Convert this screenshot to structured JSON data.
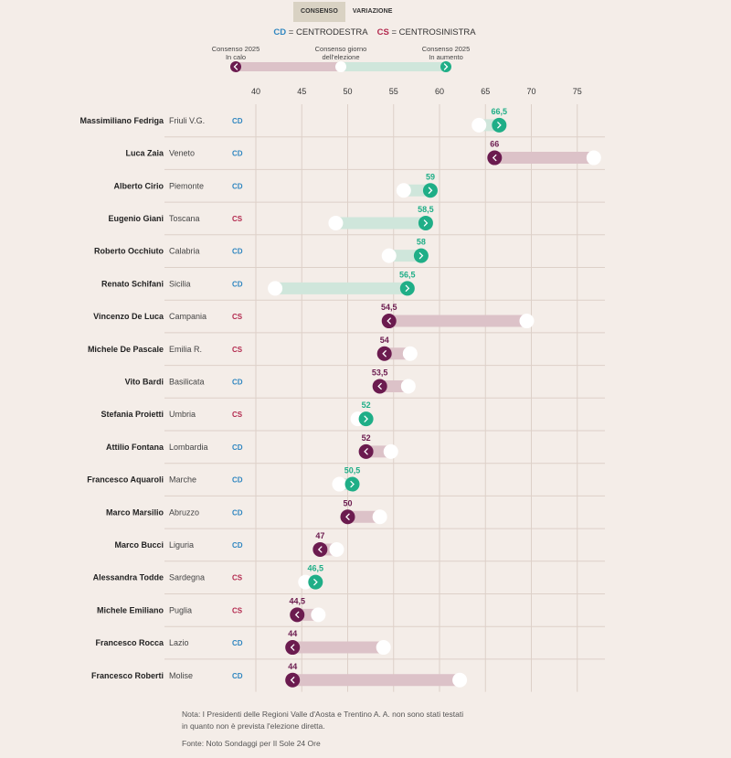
{
  "tabs": [
    {
      "label": "CONSENSO",
      "active": true
    },
    {
      "label": "VARIAZIONE",
      "active": false
    }
  ],
  "legend": {
    "cd_code": "CD",
    "cd_text": "= CENTRODESTRA",
    "cs_code": "CS",
    "cs_text": "= CENTROSINISTRA"
  },
  "key": {
    "left": "Consenso 2025\nIn calo",
    "left_l1": "Consenso 2025",
    "left_l2": "In calo",
    "mid_l1": "Consenso giorno",
    "mid_l2": "dell'elezione",
    "right_l1": "Consenso 2025",
    "right_l2": "In aumento"
  },
  "colors": {
    "background": "#f4ede8",
    "increase": "#1fae87",
    "increase_bar": "#cfe6db",
    "decrease": "#6b1b4f",
    "decrease_bar": "#dcc2c8",
    "cd": "#2f86c0",
    "cs": "#b3294e",
    "grid": "#ddd0c8"
  },
  "chart_data": {
    "type": "dumbbell",
    "title": "",
    "xlabel": "",
    "xlim": [
      40,
      75
    ],
    "xticks": [
      40,
      45,
      50,
      55,
      60,
      65,
      70,
      75
    ],
    "series_names": [
      "Consenso giorno dell'elezione",
      "Consenso 2025"
    ],
    "rows": [
      {
        "name": "Massimiliano Fedriga",
        "region": "Friuli V.G.",
        "coalition": "CD",
        "election": 64.3,
        "consensus_2025": 66.5,
        "label": "66,5"
      },
      {
        "name": "Luca Zaia",
        "region": "Veneto",
        "coalition": "CD",
        "election": 76.8,
        "consensus_2025": 66,
        "label": "66"
      },
      {
        "name": "Alberto Cirio",
        "region": "Piemonte",
        "coalition": "CD",
        "election": 56.1,
        "consensus_2025": 59,
        "label": "59"
      },
      {
        "name": "Eugenio Giani",
        "region": "Toscana",
        "coalition": "CS",
        "election": 48.7,
        "consensus_2025": 58.5,
        "label": "58,5"
      },
      {
        "name": "Roberto Occhiuto",
        "region": "Calabria",
        "coalition": "CD",
        "election": 54.5,
        "consensus_2025": 58,
        "label": "58"
      },
      {
        "name": "Renato Schifani",
        "region": "Sicilia",
        "coalition": "CD",
        "election": 42.1,
        "consensus_2025": 56.5,
        "label": "56,5"
      },
      {
        "name": "Vincenzo De Luca",
        "region": "Campania",
        "coalition": "CS",
        "election": 69.5,
        "consensus_2025": 54.5,
        "label": "54,5"
      },
      {
        "name": "Michele De Pascale",
        "region": "Emilia R.",
        "coalition": "CS",
        "election": 56.8,
        "consensus_2025": 54,
        "label": "54"
      },
      {
        "name": "Vito Bardi",
        "region": "Basilicata",
        "coalition": "CD",
        "election": 56.6,
        "consensus_2025": 53.5,
        "label": "53,5"
      },
      {
        "name": "Stefania Proietti",
        "region": "Umbria",
        "coalition": "CS",
        "election": 51.1,
        "consensus_2025": 52,
        "label": "52"
      },
      {
        "name": "Attilio Fontana",
        "region": "Lombardia",
        "coalition": "CD",
        "election": 54.7,
        "consensus_2025": 52,
        "label": "52"
      },
      {
        "name": "Francesco Aquaroli",
        "region": "Marche",
        "coalition": "CD",
        "election": 49.1,
        "consensus_2025": 50.5,
        "label": "50,5"
      },
      {
        "name": "Marco Marsilio",
        "region": "Abruzzo",
        "coalition": "CD",
        "election": 53.5,
        "consensus_2025": 50,
        "label": "50"
      },
      {
        "name": "Marco Bucci",
        "region": "Liguria",
        "coalition": "CD",
        "election": 48.8,
        "consensus_2025": 47,
        "label": "47"
      },
      {
        "name": "Alessandra Todde",
        "region": "Sardegna",
        "coalition": "CS",
        "election": 45.4,
        "consensus_2025": 46.5,
        "label": "46,5"
      },
      {
        "name": "Michele Emiliano",
        "region": "Puglia",
        "coalition": "CS",
        "election": 46.8,
        "consensus_2025": 44.5,
        "label": "44,5"
      },
      {
        "name": "Francesco Rocca",
        "region": "Lazio",
        "coalition": "CD",
        "election": 53.9,
        "consensus_2025": 44,
        "label": "44"
      },
      {
        "name": "Francesco Roberti",
        "region": "Molise",
        "coalition": "CD",
        "election": 62.2,
        "consensus_2025": 44,
        "label": "44"
      }
    ]
  },
  "footer": {
    "note_l1": "Nota: I Presidenti delle Regioni Valle d'Aosta e Trentino A. A. non sono stati testati",
    "note_l2": "in quanto non è prevista l'elezione diretta.",
    "source": "Fonte: Noto Sondaggi per Il Sole 24 Ore"
  }
}
